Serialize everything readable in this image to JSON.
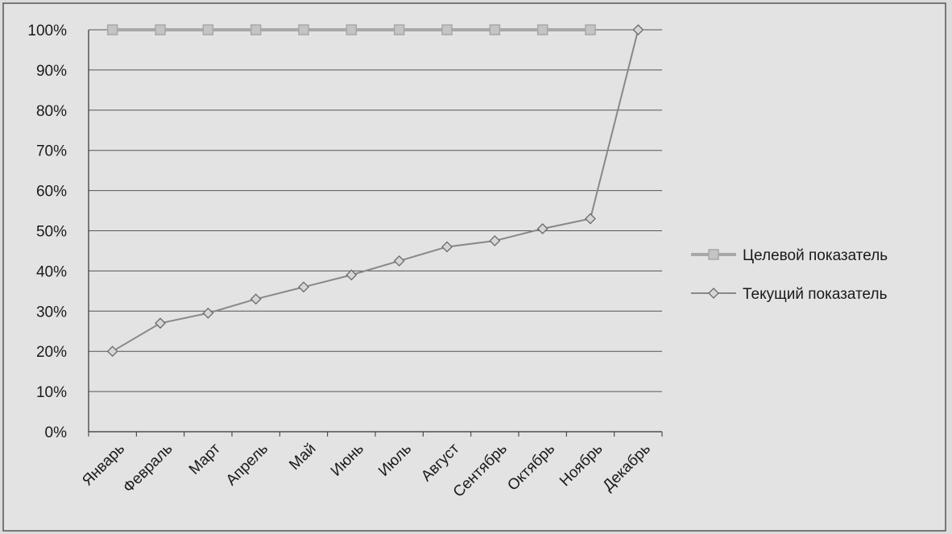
{
  "chart_data": {
    "type": "line",
    "categories": [
      "Январь",
      "Февраль",
      "Март",
      "Апрель",
      "Май",
      "Июнь",
      "Июль",
      "Август",
      "Сентябрь",
      "Октябрь",
      "Ноябрь",
      "Декабрь"
    ],
    "series": [
      {
        "name": "Целевой показатель",
        "values": [
          100,
          100,
          100,
          100,
          100,
          100,
          100,
          100,
          100,
          100,
          100,
          null
        ],
        "marker": "square",
        "color": "#a8a8a8"
      },
      {
        "name": "Текущий показатель",
        "values": [
          20,
          27,
          29.5,
          33,
          36,
          39,
          42.5,
          46,
          47.5,
          50.5,
          53,
          100
        ],
        "marker": "diamond",
        "color": "#888888"
      }
    ],
    "y_ticks": [
      "0%",
      "10%",
      "20%",
      "30%",
      "40%",
      "50%",
      "60%",
      "70%",
      "80%",
      "90%",
      "100%"
    ],
    "ylim": [
      0,
      100
    ],
    "grid": true,
    "legend": "right"
  }
}
